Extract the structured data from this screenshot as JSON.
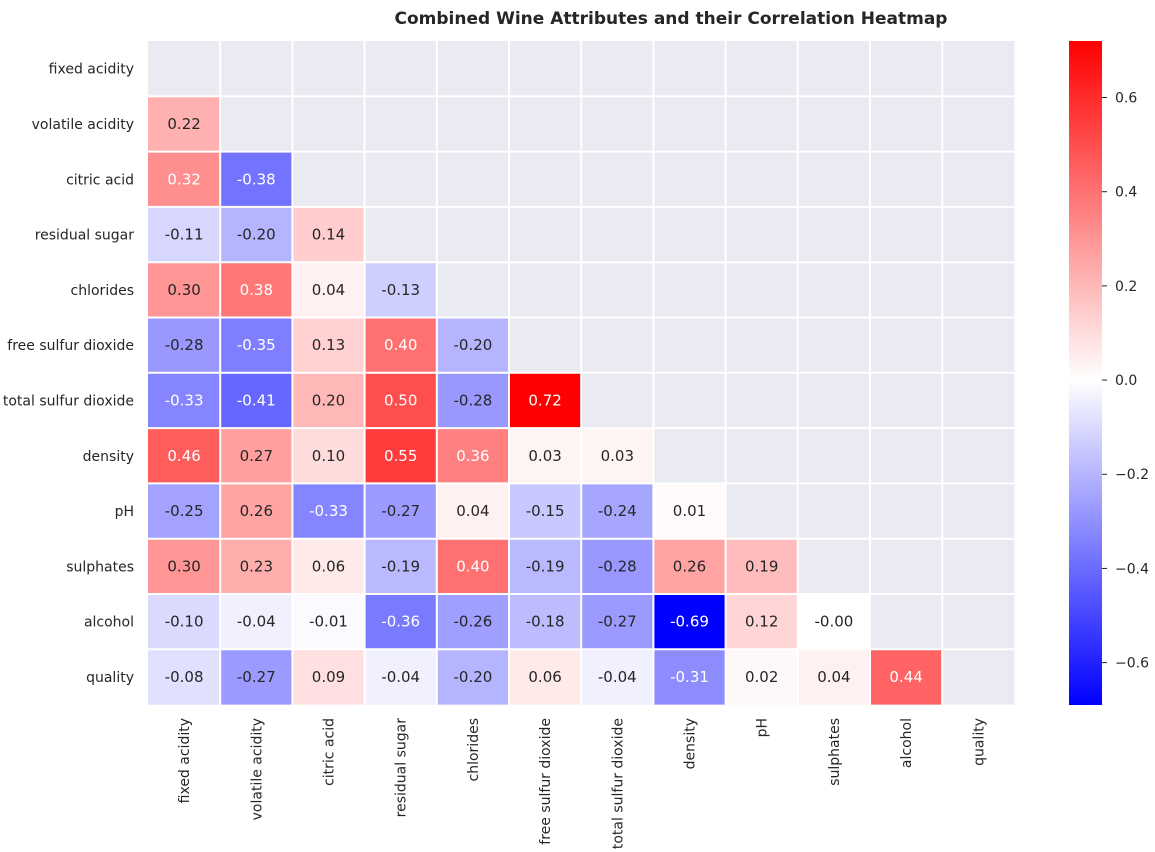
{
  "chart_data": {
    "type": "heatmap",
    "title": "Combined Wine Attributes and their Correlation Heatmap",
    "rows": [
      "fixed acidity",
      "volatile acidity",
      "citric acid",
      "residual sugar",
      "chlorides",
      "free sulfur dioxide",
      "total sulfur dioxide",
      "density",
      "pH",
      "sulphates",
      "alcohol",
      "quality"
    ],
    "columns": [
      "fixed acidity",
      "volatile acidity",
      "citric acid",
      "residual sugar",
      "chlorides",
      "free sulfur dioxide",
      "total sulfur dioxide",
      "density",
      "pH",
      "sulphates",
      "alcohol",
      "quality"
    ],
    "mask": "upper-triangle-including-diagonal",
    "values": [
      [],
      [
        0.22
      ],
      [
        0.32,
        -0.38
      ],
      [
        -0.11,
        -0.2,
        0.14
      ],
      [
        0.3,
        0.38,
        0.04,
        -0.13
      ],
      [
        -0.28,
        -0.35,
        0.13,
        0.4,
        -0.2
      ],
      [
        -0.33,
        -0.41,
        0.2,
        0.5,
        -0.28,
        0.72
      ],
      [
        0.46,
        0.27,
        0.1,
        0.55,
        0.36,
        0.03,
        0.03
      ],
      [
        -0.25,
        0.26,
        -0.33,
        -0.27,
        0.04,
        -0.15,
        -0.24,
        0.01
      ],
      [
        0.3,
        0.23,
        0.06,
        -0.19,
        0.4,
        -0.19,
        -0.28,
        0.26,
        0.19
      ],
      [
        -0.1,
        -0.04,
        -0.01,
        -0.36,
        -0.26,
        -0.18,
        -0.27,
        -0.69,
        0.12,
        -0.0
      ],
      [
        -0.08,
        -0.27,
        0.09,
        -0.04,
        -0.2,
        0.06,
        -0.04,
        -0.31,
        0.02,
        0.04,
        0.44
      ]
    ],
    "labels": [
      [],
      [
        "0.22"
      ],
      [
        "0.32",
        "-0.38"
      ],
      [
        "-0.11",
        "-0.20",
        "0.14"
      ],
      [
        "0.30",
        "0.38",
        "0.04",
        "-0.13"
      ],
      [
        "-0.28",
        "-0.35",
        "0.13",
        "0.40",
        "-0.20"
      ],
      [
        "-0.33",
        "-0.41",
        "0.20",
        "0.50",
        "-0.28",
        "0.72"
      ],
      [
        "0.46",
        "0.27",
        "0.10",
        "0.55",
        "0.36",
        "0.03",
        "0.03"
      ],
      [
        "-0.25",
        "0.26",
        "-0.33",
        "-0.27",
        "0.04",
        "-0.15",
        "-0.24",
        "0.01"
      ],
      [
        "0.30",
        "0.23",
        "0.06",
        "-0.19",
        "0.40",
        "-0.19",
        "-0.28",
        "0.26",
        "0.19"
      ],
      [
        "-0.10",
        "-0.04",
        "-0.01",
        "-0.36",
        "-0.26",
        "-0.18",
        "-0.27",
        "-0.69",
        "0.12",
        "-0.00"
      ],
      [
        "-0.08",
        "-0.27",
        "0.09",
        "-0.04",
        "-0.20",
        "0.06",
        "-0.04",
        "-0.31",
        "0.02",
        "0.04",
        "0.44"
      ]
    ],
    "colormap": "bwr",
    "vmin": -0.69,
    "vmax": 0.72,
    "colorbar_ticks": [
      -0.6,
      -0.4,
      -0.2,
      0.0,
      0.2,
      0.4,
      0.6
    ],
    "colorbar_tick_labels": [
      "−0.6",
      "−0.4",
      "−0.2",
      "0.0",
      "0.2",
      "0.4",
      "0.6"
    ],
    "grid_background": "#eaeaf2",
    "cell_separator_color": "#ffffff",
    "colors": {
      "low": "#0000ff",
      "mid": "#ffffff",
      "high": "#ff0000"
    }
  }
}
